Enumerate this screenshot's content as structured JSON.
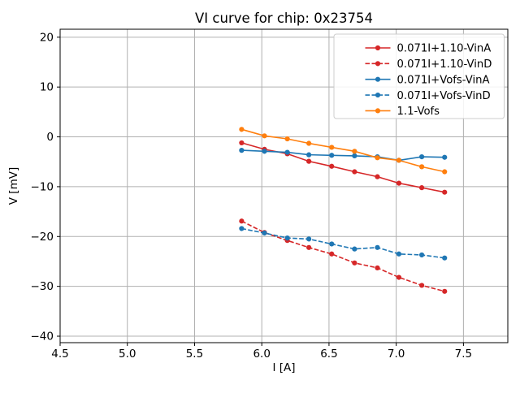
{
  "chart_data": {
    "type": "line",
    "title": "VI curve for chip: 0x23754",
    "xlabel": "I [A]",
    "ylabel": "V [mV]",
    "xlim": [
      4.5,
      7.83
    ],
    "ylim": [
      -41.3,
      21.6
    ],
    "xticks": [
      4.5,
      5.0,
      5.5,
      6.0,
      6.5,
      7.0,
      7.5
    ],
    "xtick_labels": [
      "4.5",
      "5.0",
      "5.5",
      "6.0",
      "6.5",
      "7.0",
      "7.5"
    ],
    "yticks": [
      -40,
      -30,
      -20,
      -10,
      0,
      10,
      20
    ],
    "ytick_labels": [
      "−40",
      "−30",
      "−20",
      "−10",
      "0",
      "10",
      "20"
    ],
    "grid": true,
    "grid_color": "#b0b0b0",
    "legend_position": "upper right",
    "x": [
      5.85,
      6.02,
      6.19,
      6.35,
      6.52,
      6.69,
      6.86,
      7.02,
      7.19,
      7.36
    ],
    "series": [
      {
        "name": "0.071I+1.10-VinA",
        "color": "#d62728",
        "style": "solid",
        "marker": "circle",
        "values": [
          -1.2,
          -2.5,
          -3.4,
          -4.9,
          -5.9,
          -7.0,
          -8.0,
          -9.3,
          -10.2,
          -11.1
        ]
      },
      {
        "name": "0.071I+1.10-VinD",
        "color": "#d62728",
        "style": "dashed",
        "marker": "circle",
        "values": [
          -16.9,
          -19.2,
          -20.8,
          -22.2,
          -23.5,
          -25.3,
          -26.3,
          -28.2,
          -29.8,
          -31.0
        ]
      },
      {
        "name": "0.071I+Vofs-VinA",
        "color": "#1f77b4",
        "style": "solid",
        "marker": "circle",
        "values": [
          -2.7,
          -2.9,
          -3.1,
          -3.6,
          -3.7,
          -3.8,
          -4.0,
          -4.7,
          -4.0,
          -4.1
        ]
      },
      {
        "name": "0.071I+Vofs-VinD",
        "color": "#1f77b4",
        "style": "dashed",
        "marker": "circle",
        "values": [
          -18.4,
          -19.3,
          -20.3,
          -20.5,
          -21.5,
          -22.5,
          -22.2,
          -23.5,
          -23.7,
          -24.3
        ]
      },
      {
        "name": "1.1-Vofs",
        "color": "#ff7f0e",
        "style": "solid",
        "marker": "circle",
        "values": [
          1.5,
          0.2,
          -0.4,
          -1.3,
          -2.1,
          -2.9,
          -4.2,
          -4.7,
          -6.0,
          -7.0
        ]
      }
    ]
  }
}
